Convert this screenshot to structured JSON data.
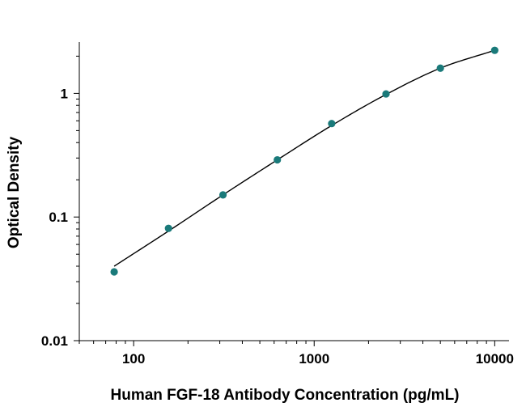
{
  "chart_data": {
    "type": "scatter",
    "title": "",
    "xlabel": "Human FGF-18 Antibody Concentration (pg/mL)",
    "ylabel": "Optical Density",
    "xscale": "log",
    "yscale": "log",
    "xlim": [
      50,
      12000
    ],
    "ylim": [
      0.01,
      2.6
    ],
    "xticks": [
      100,
      1000,
      10000
    ],
    "xtick_labels": [
      "100",
      "1000",
      "10000"
    ],
    "yticks": [
      0.01,
      0.1,
      1
    ],
    "ytick_labels": [
      "0.01",
      "0.1",
      "1"
    ],
    "grid": false,
    "legend": "none",
    "point_color": "#1a7a7a",
    "curve_color": "#000000",
    "series": [
      {
        "x": [
          78,
          156,
          312.5,
          625,
          1250,
          2500,
          5000,
          10000
        ],
        "y": [
          0.036,
          0.081,
          0.151,
          0.29,
          0.57,
          0.99,
          1.6,
          2.23
        ]
      }
    ],
    "fit_curve": {
      "x": [
        78,
        156,
        312.5,
        625,
        1250,
        2500,
        5000,
        10000
      ],
      "y": [
        0.04,
        0.077,
        0.151,
        0.29,
        0.55,
        0.98,
        1.6,
        2.23
      ]
    }
  }
}
